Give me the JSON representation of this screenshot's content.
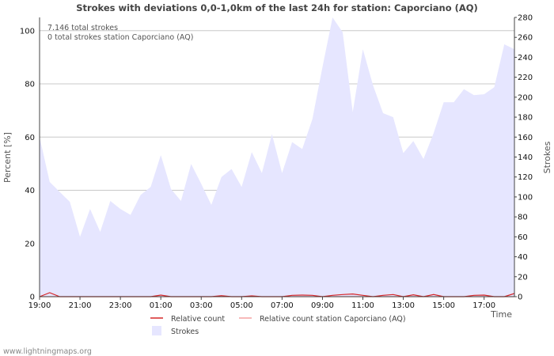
{
  "chart_data": {
    "type": "area",
    "title": "Strokes with deviations 0,0-1,0km of the last 24h for station: Caporciano (AQ)",
    "ylabel_left": "Percent   [%]",
    "ylabel_right": "Strokes",
    "xlabel": "Time",
    "ylim_left": [
      0,
      105
    ],
    "ylim_right": [
      0,
      280
    ],
    "yticks_left": [
      0,
      20,
      40,
      60,
      80,
      100
    ],
    "yticks_right": [
      0,
      20,
      40,
      60,
      80,
      100,
      120,
      140,
      160,
      180,
      200,
      220,
      240,
      260,
      280
    ],
    "xticks": [
      {
        "label": "19:00",
        "t": 0
      },
      {
        "label": "21:00",
        "t": 4
      },
      {
        "label": "23:00",
        "t": 8
      },
      {
        "label": "01:00",
        "t": 12
      },
      {
        "label": "03:00",
        "t": 16
      },
      {
        "label": "05:00",
        "t": 20
      },
      {
        "label": "07:00",
        "t": 24
      },
      {
        "label": "09:00",
        "t": 28
      },
      {
        "label": "11:00",
        "t": 32
      },
      {
        "label": "13:00",
        "t": 36
      },
      {
        "label": "15:00",
        "t": 40
      },
      {
        "label": "17:00",
        "t": 44
      }
    ],
    "t_range": [
      0,
      47
    ],
    "info_lines": [
      "7.146 total strokes",
      "0 total strokes station Caporciano (AQ)"
    ],
    "series": [
      {
        "name": "Strokes",
        "axis": "right",
        "color": "#e6e6ff",
        "values": [
          160,
          115,
          105,
          95,
          60,
          88,
          65,
          96,
          88,
          82,
          102,
          110,
          142,
          108,
          96,
          133,
          113,
          92,
          120,
          128,
          110,
          145,
          124,
          163,
          124,
          155,
          148,
          178,
          230,
          280,
          265,
          185,
          248,
          212,
          184,
          180,
          144,
          156,
          138,
          164,
          195,
          195,
          208,
          202,
          203,
          210,
          253,
          248
        ]
      },
      {
        "name": "Relative count",
        "axis": "left",
        "color": "#d62728",
        "values": [
          0,
          1.5,
          0,
          0,
          0,
          0,
          0,
          0,
          0,
          0,
          0,
          0,
          0.6,
          0,
          0,
          0,
          0,
          0,
          0.4,
          0,
          0,
          0.3,
          0,
          0,
          0,
          0.5,
          0.6,
          0.5,
          0,
          0.5,
          0.8,
          1.0,
          0.5,
          0,
          0.5,
          0.8,
          0,
          0.7,
          0,
          0.8,
          0,
          0,
          0,
          0.5,
          0.6,
          0,
          0,
          1.2
        ]
      },
      {
        "name": "Relative count station Caporciano (AQ)",
        "axis": "left",
        "color": "#f4a3a3",
        "values": [
          0,
          0,
          0,
          0,
          0,
          0,
          0,
          0,
          0,
          0,
          0,
          0,
          0,
          0,
          0,
          0,
          0,
          0,
          0,
          0,
          0,
          0,
          0,
          0,
          0,
          0,
          0,
          0,
          0,
          0,
          0,
          0,
          0,
          0,
          0,
          0,
          0,
          0,
          0,
          0,
          0,
          0,
          0,
          0,
          0,
          0,
          0,
          0
        ]
      }
    ]
  },
  "footer": "www.lightningmaps.org"
}
